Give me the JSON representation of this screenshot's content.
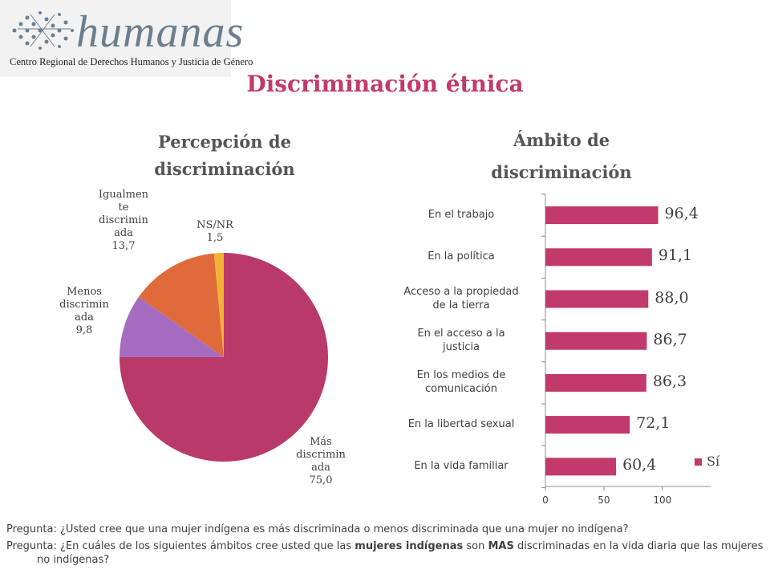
{
  "logo": {
    "wordmark": "humanas",
    "subtitle": "Centro Regional de Derechos Humanos y Justicia de Género"
  },
  "title": "Discriminación étnica",
  "chart_data": [
    {
      "type": "pie",
      "title": "Percepción de discriminación",
      "slices": [
        {
          "label": "Más discriminada",
          "value": 75.0,
          "display": "75,0",
          "label_lines": [
            "Más",
            "discrimin",
            "ada"
          ],
          "color": "#b93a68"
        },
        {
          "label": "Menos discriminada",
          "value": 9.8,
          "display": "9,8",
          "label_lines": [
            "Menos",
            "discrimin",
            "ada"
          ],
          "color": "#a66cc0"
        },
        {
          "label": "Igualmente discriminada",
          "value": 13.7,
          "display": "13,7",
          "label_lines": [
            "Igualmen",
            "te",
            "discrimin",
            "ada"
          ],
          "color": "#df6b3a"
        },
        {
          "label": "NS/NR",
          "value": 1.5,
          "display": "1,5",
          "label_lines": [
            "NS/NR"
          ],
          "color": "#f4b234"
        }
      ]
    },
    {
      "type": "bar",
      "orientation": "horizontal",
      "title": "Ámbito de discriminación",
      "categories": [
        "En el trabajo",
        "En la política",
        "Acceso a la propiedad de la tierra",
        "En el acceso a la justicia",
        "En los medios de comunicación",
        "En la libertad sexual",
        "En la vida familiar"
      ],
      "category_lines": [
        [
          "En el trabajo"
        ],
        [
          "En la política"
        ],
        [
          "Acceso a la propiedad",
          "de la tierra"
        ],
        [
          "En el acceso a la",
          "justicia"
        ],
        [
          "En los medios de",
          "comunicación"
        ],
        [
          "En la libertad sexual"
        ],
        [
          "En la vida familiar"
        ]
      ],
      "series": [
        {
          "name": "Sí",
          "values": [
            96.4,
            91.1,
            88.0,
            86.7,
            86.3,
            72.1,
            60.4
          ],
          "labels": [
            "96,4",
            "91,1",
            "88,0",
            "86,7",
            "86,3",
            "72,1",
            "60,4"
          ]
        }
      ],
      "xlim": [
        0,
        140
      ],
      "xticks": [
        0,
        50,
        100
      ],
      "legend_position": "bottom-right",
      "bar_color": "#c2396b"
    }
  ],
  "questions": [
    "Pregunta: ¿Usted cree que una mujer indígena es más discriminada o menos discriminada que una mujer no indígena?",
    {
      "prefix": "Pregunta: ¿En cuáles de los siguientes ámbitos cree usted que las ",
      "bold1": "mujeres indígenas",
      "mid": " son ",
      "bold2": "MAS",
      "suffix": " discriminadas en la vida diaria que las mujeres no indígenas?"
    }
  ]
}
